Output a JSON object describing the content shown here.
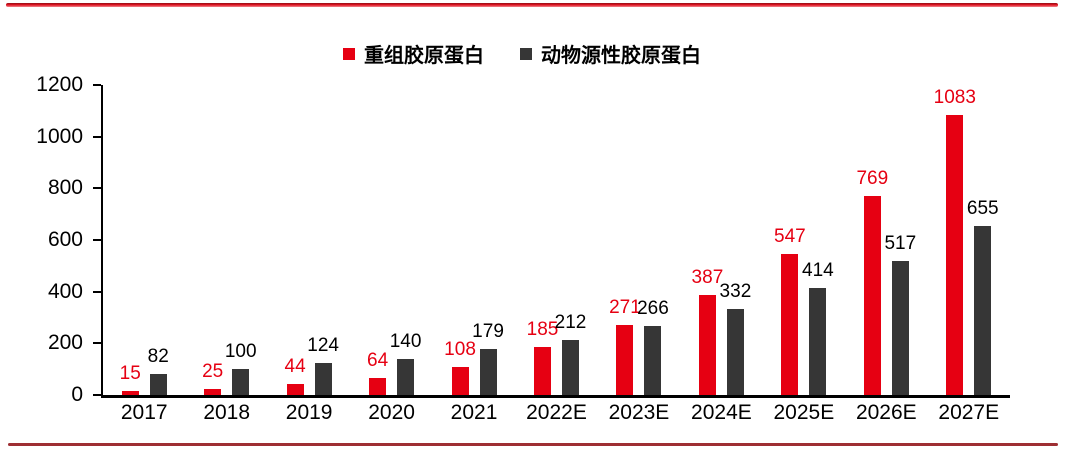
{
  "chart_data": {
    "type": "bar",
    "categories": [
      "2017",
      "2018",
      "2019",
      "2020",
      "2021",
      "2022E",
      "2023E",
      "2024E",
      "2025E",
      "2026E",
      "2027E"
    ],
    "series": [
      {
        "name": "重组胶原蛋白",
        "color": "#e60012",
        "values": [
          15,
          25,
          44,
          64,
          108,
          185,
          271,
          387,
          547,
          769,
          1083
        ]
      },
      {
        "name": "动物源性胶原蛋白",
        "color": "#363636",
        "values": [
          82,
          100,
          124,
          140,
          179,
          212,
          266,
          332,
          414,
          517,
          655
        ]
      }
    ],
    "ylim": [
      0,
      1200
    ],
    "yticks": [
      0,
      200,
      400,
      600,
      800,
      1000,
      1200
    ],
    "xlabel": "",
    "ylabel": "",
    "grid": false,
    "legend_position": "top-center",
    "value_labels": "above-bars"
  },
  "colors": {
    "axis": "#000000",
    "value_label_series1": "#e60012",
    "value_label_series2": "#000000",
    "top_rule": "#e01120",
    "top_rule_edge": "#8e1016",
    "top_rule_fade": "#f0868c",
    "bottom_rule": "#9e2f33",
    "background": "#ffffff"
  }
}
